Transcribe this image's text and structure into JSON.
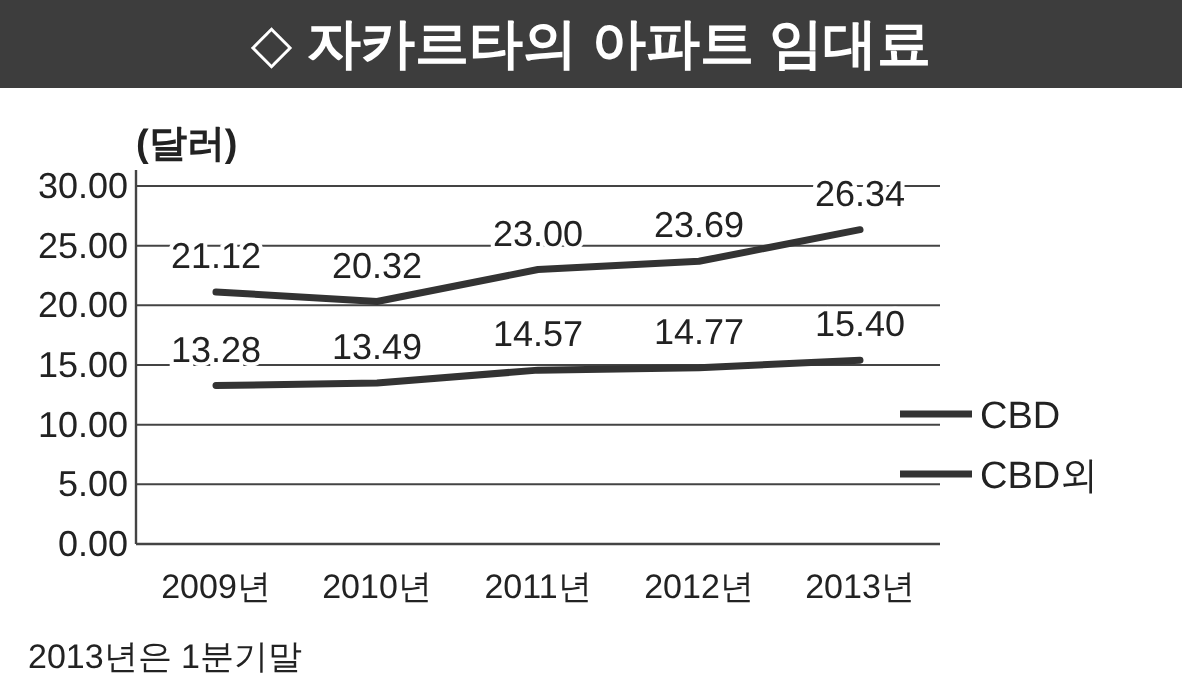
{
  "chart_data": {
    "type": "line",
    "title": "◇ 자카르타의 아파트 임대료",
    "ylabel": "(달러)",
    "categories": [
      "2009년",
      "2010년",
      "2011년",
      "2012년",
      "2013년"
    ],
    "series": [
      {
        "name": "CBD",
        "color": "#333333",
        "values": [
          21.12,
          20.32,
          23.0,
          23.69,
          26.34
        ],
        "value_labels": [
          "21.12",
          "20.32",
          "23.00",
          "23.69",
          "26.34"
        ]
      },
      {
        "name": "CBD외",
        "color": "#333333",
        "values": [
          13.28,
          13.49,
          14.57,
          14.77,
          15.4
        ],
        "value_labels": [
          "13.28",
          "13.49",
          "14.57",
          "14.77",
          "15.40"
        ]
      }
    ],
    "ylim": [
      0,
      30
    ],
    "yticks": [
      {
        "value": 0,
        "label": "0.00"
      },
      {
        "value": 5,
        "label": "5.00"
      },
      {
        "value": 10,
        "label": "10.00"
      },
      {
        "value": 15,
        "label": "15.00"
      },
      {
        "value": 20,
        "label": "20.00"
      },
      {
        "value": 25,
        "label": "25.00"
      },
      {
        "value": 30,
        "label": "30.00"
      }
    ],
    "grid": "y",
    "legend": "right",
    "marker": "none",
    "line_style": "solid",
    "annotations": [
      "2013년은 1분기말"
    ]
  }
}
